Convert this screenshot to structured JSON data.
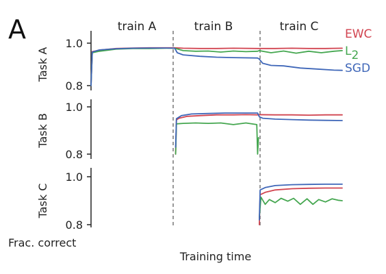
{
  "panel_label": "A",
  "phase_labels": [
    "train A",
    "train B",
    "train C"
  ],
  "xlabel": "Training time",
  "corner_label": "Frac. correct",
  "colors": {
    "EWC": "#d1434f",
    "L2": "#44a64f",
    "SGD": "#3e66b8",
    "divider": "#777777",
    "axis": "#222222"
  },
  "chart_data": [
    {
      "type": "line",
      "ylabel": "Task A",
      "ylim": [
        0.8,
        1.0
      ],
      "yticks": [
        "1.0",
        "0.8"
      ],
      "xlim": [
        0,
        3
      ],
      "series": [
        {
          "name": "EWC",
          "color": "#d1434f",
          "x": [
            0.0,
            0.015,
            0.1,
            0.3,
            0.5,
            0.7,
            0.9,
            1.0,
            1.1,
            1.3,
            1.5,
            1.7,
            1.99,
            2.01,
            2.2,
            2.4,
            2.6,
            2.8,
            3.0
          ],
          "y": [
            0.8,
            0.96,
            0.967,
            0.975,
            0.977,
            0.978,
            0.978,
            0.978,
            0.976,
            0.975,
            0.975,
            0.976,
            0.975,
            0.975,
            0.975,
            0.976,
            0.975,
            0.975,
            0.976
          ]
        },
        {
          "name": "L2",
          "color": "#44a64f",
          "x": [
            0.0,
            0.015,
            0.1,
            0.3,
            0.5,
            0.7,
            0.9,
            1.0,
            1.1,
            1.25,
            1.4,
            1.55,
            1.7,
            1.85,
            1.99,
            2.01,
            2.15,
            2.3,
            2.45,
            2.6,
            2.75,
            2.9,
            3.0
          ],
          "y": [
            0.8,
            0.955,
            0.962,
            0.972,
            0.975,
            0.975,
            0.976,
            0.976,
            0.965,
            0.962,
            0.963,
            0.958,
            0.963,
            0.96,
            0.962,
            0.965,
            0.955,
            0.963,
            0.953,
            0.962,
            0.955,
            0.962,
            0.965
          ]
        },
        {
          "name": "SGD",
          "color": "#3e66b8",
          "x": [
            0.0,
            0.015,
            0.1,
            0.3,
            0.5,
            0.7,
            0.9,
            1.0,
            1.03,
            1.1,
            1.3,
            1.5,
            1.7,
            1.99,
            2.01,
            2.05,
            2.15,
            2.3,
            2.5,
            2.7,
            2.9,
            3.0
          ],
          "y": [
            0.8,
            0.958,
            0.968,
            0.974,
            0.976,
            0.977,
            0.977,
            0.976,
            0.955,
            0.945,
            0.938,
            0.934,
            0.932,
            0.93,
            0.925,
            0.905,
            0.895,
            0.893,
            0.883,
            0.878,
            0.873,
            0.872
          ]
        }
      ],
      "legend": [
        {
          "label": "EWC",
          "sub": "",
          "color": "#d1434f"
        },
        {
          "label": "L",
          "sub": "2",
          "color": "#44a64f"
        },
        {
          "label": "SGD",
          "sub": "",
          "color": "#3e66b8"
        }
      ]
    },
    {
      "type": "line",
      "ylabel": "Task B",
      "ylim": [
        0.8,
        1.0
      ],
      "yticks": [
        "1.0",
        "0.8"
      ],
      "xlim": [
        0,
        3
      ],
      "series": [
        {
          "name": "EWC",
          "color": "#d1434f",
          "x": [
            1.01,
            1.02,
            1.05,
            1.15,
            1.3,
            1.5,
            1.7,
            1.85,
            1.99,
            2.01,
            2.2,
            2.4,
            2.6,
            2.8,
            3.0
          ],
          "y": [
            0.8,
            0.945,
            0.952,
            0.96,
            0.963,
            0.966,
            0.966,
            0.967,
            0.966,
            0.967,
            0.966,
            0.966,
            0.965,
            0.966,
            0.966
          ]
        },
        {
          "name": "L2",
          "color": "#44a64f",
          "x": [
            1.01,
            1.02,
            1.1,
            1.25,
            1.4,
            1.55,
            1.7,
            1.85,
            1.98,
            1.99,
            2.0
          ],
          "y": [
            0.8,
            0.928,
            0.93,
            0.932,
            0.93,
            0.932,
            0.925,
            0.932,
            0.925,
            0.8,
            0.87
          ]
        },
        {
          "name": "SGD",
          "color": "#3e66b8",
          "x": [
            1.01,
            1.02,
            1.08,
            1.2,
            1.4,
            1.6,
            1.8,
            1.99,
            2.01,
            2.05,
            2.2,
            2.4,
            2.6,
            2.8,
            3.0
          ],
          "y": [
            0.83,
            0.95,
            0.963,
            0.97,
            0.972,
            0.974,
            0.974,
            0.974,
            0.958,
            0.952,
            0.948,
            0.946,
            0.944,
            0.943,
            0.942
          ]
        }
      ],
      "legend": []
    },
    {
      "type": "line",
      "ylabel": "Task C",
      "ylim": [
        0.8,
        1.0
      ],
      "yticks": [
        "1.0",
        "0.8"
      ],
      "xlim": [
        0,
        3
      ],
      "series": [
        {
          "name": "EWC",
          "color": "#d1434f",
          "x": [
            2.01,
            2.02,
            2.08,
            2.2,
            2.4,
            2.6,
            2.8,
            3.0
          ],
          "y": [
            0.8,
            0.925,
            0.935,
            0.945,
            0.95,
            0.952,
            0.953,
            0.953
          ]
        },
        {
          "name": "L2",
          "color": "#44a64f",
          "x": [
            2.01,
            2.03,
            2.08,
            2.13,
            2.2,
            2.27,
            2.35,
            2.42,
            2.5,
            2.58,
            2.65,
            2.72,
            2.8,
            2.88,
            2.95,
            3.0
          ],
          "y": [
            0.83,
            0.915,
            0.885,
            0.905,
            0.892,
            0.91,
            0.898,
            0.91,
            0.885,
            0.908,
            0.885,
            0.905,
            0.895,
            0.908,
            0.902,
            0.9
          ]
        },
        {
          "name": "SGD",
          "color": "#3e66b8",
          "x": [
            2.01,
            2.02,
            2.08,
            2.2,
            2.4,
            2.6,
            2.8,
            3.0
          ],
          "y": [
            0.82,
            0.945,
            0.955,
            0.963,
            0.967,
            0.968,
            0.969,
            0.969
          ]
        }
      ],
      "legend": []
    }
  ]
}
